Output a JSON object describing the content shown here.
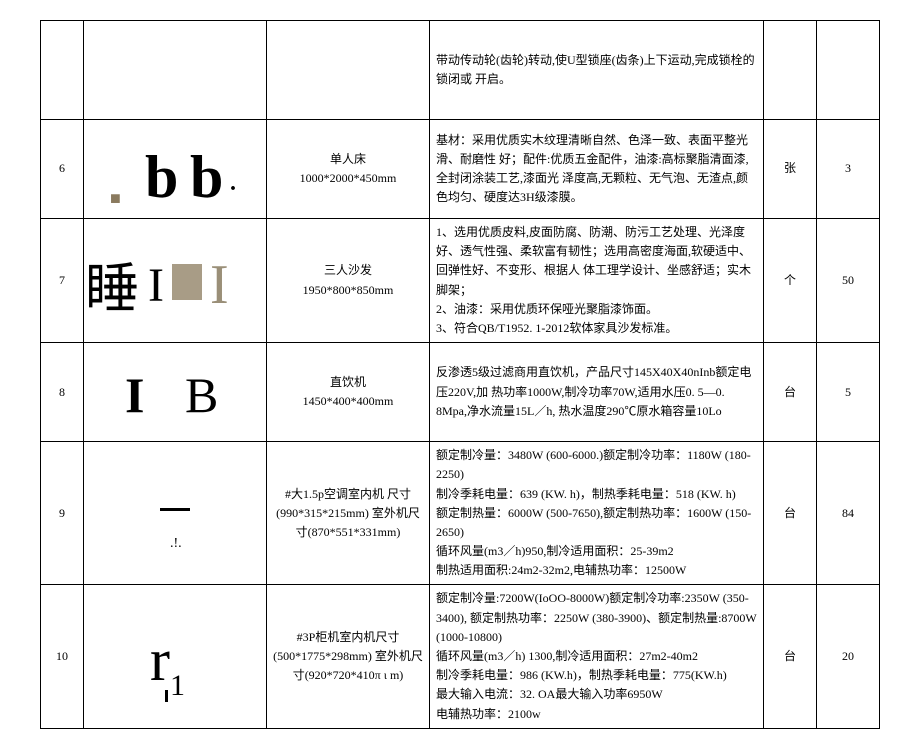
{
  "rows": [
    {
      "idx": "",
      "name": "",
      "desc": "带动传动轮(齿轮)转动,使U型锁座(齿条)上下运动,完成锁栓的锁闭或 开启。",
      "unit": "",
      "qty": ""
    },
    {
      "idx": "6",
      "name": "单人床\n1000*2000*450mm",
      "desc": "基材：采用优质实木纹理清晰自然、色泽一致、表面平整光滑、耐磨性 好；配件:优质五金配件，油漆:高标聚脂清面漆,全封闭涂装工艺,漆面光 泽度高,无颗粒、无气泡、无渣点,颜色均匀、硬度达3H级漆膜。",
      "unit": "张",
      "qty": "3"
    },
    {
      "idx": "7",
      "name": "三人沙发\n1950*800*850mm",
      "desc": "1、选用优质皮料,皮面防腐、防潮、防污工艺处理、光泽度好、透气性强、柔软富有韧性；选用高密度海面,软硬适中、回弹性好、不变形、根据人 体工理学设计、坐感舒适；实木脚架；\n2、油漆：采用优质环保哑光聚脂漆饰面。\n3、符合QB/T1952. 1-2012软体家具沙发标准。",
      "unit": "个",
      "qty": "50"
    },
    {
      "idx": "8",
      "name": "直饮机\n1450*400*400mm",
      "desc": "反渗透5级过滤商用直饮机，产品尺寸145X40X40nInb额定电压220V,加 热功率1000W,制冷功率70W,适用水压0. 5—0. 8Mpa,净水流量15L／h, 热水温度290℃原水箱容量10Lo",
      "unit": "台",
      "qty": "5"
    },
    {
      "idx": "9",
      "name": "#大1.5p空调室内机 尺寸(990*315*215mm) 室外机尺寸(870*551*331mm)",
      "desc": "额定制冷量：3480W (600-6000.)额定制冷功率：1180W (180-2250)\n制冷季耗电量：639 (KW. h)，制热季耗电量：518 (KW. h)\n额定制热量：6000W (500-7650),额定制热功率：1600W (150-2650)\n循环风量(m3／h)950,制冷适用面积：25-39m2\n制热适用面积:24m2-32m2,电辅热功率：12500W",
      "unit": "台",
      "qty": "84"
    },
    {
      "idx": "10",
      "name": "#3P柜机室内机尺寸(500*1775*298mm) 室外机尺寸(920*720*410π ι m)",
      "desc": "额定制冷量:7200W(IoOO-8000W)额定制冷功率:2350W (350-3400), 额定制热功率：2250W (380-3900)、额定制热量:8700W (1000-10800)\n循环风量(m3／h) 1300,制冷适用面积：27m2-40m2\n制冷季耗电量：986 (KW.h)，制热季耗电量：775(KW.h)\n最大输入电流：32. OA最大输入功率6950W\n电辅热功率：2100w",
      "unit": "台",
      "qty": "20"
    }
  ]
}
